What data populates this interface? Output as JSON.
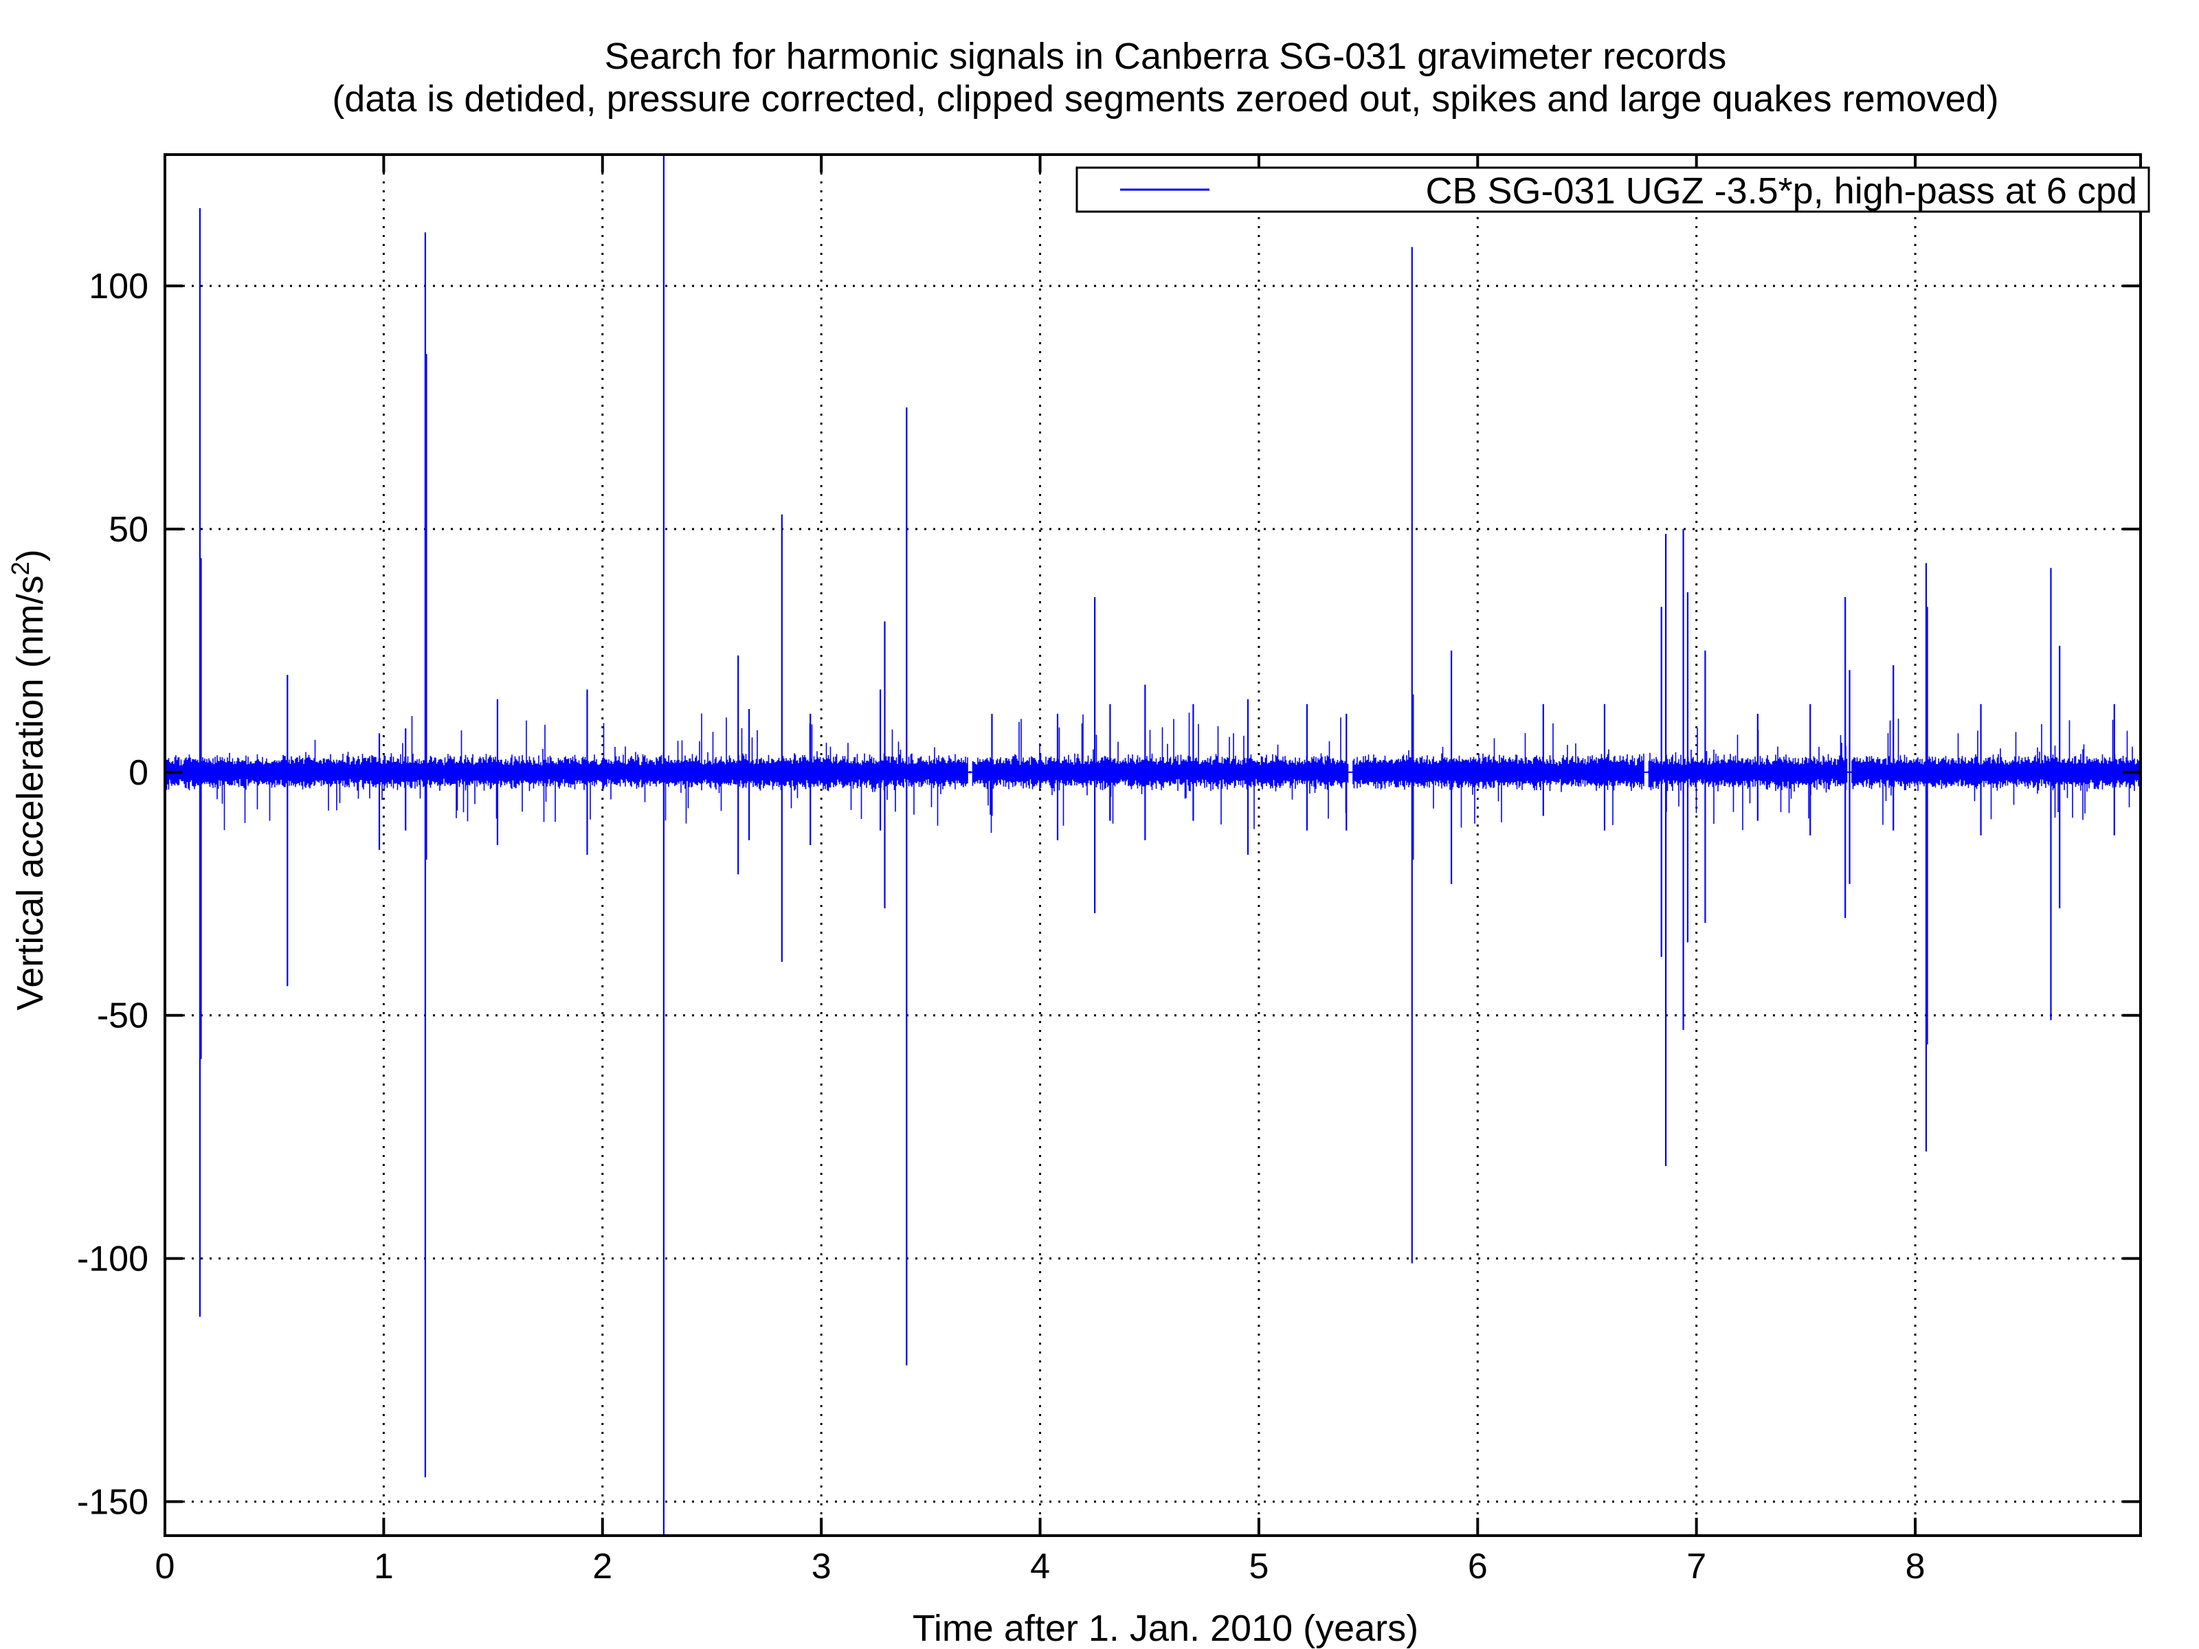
{
  "chart_data": {
    "type": "line",
    "title": "Search for harmonic signals in Canberra SG-031 gravimeter records",
    "subtitle": "(data is detided, pressure corrected, clipped segments zeroed out, spikes and large quakes removed)",
    "xlabel": "Time after 1. Jan. 2010 (years)",
    "ylabel": {
      "base": "Vertical acceleration (nm/s",
      "superscript": "2",
      "suffix": ")"
    },
    "xlim": [
      0,
      9.03
    ],
    "ylim": [
      -157,
      127
    ],
    "x_ticks": [
      0,
      1,
      2,
      3,
      4,
      5,
      6,
      7,
      8
    ],
    "y_ticks": [
      -150,
      -100,
      -50,
      0,
      50,
      100
    ],
    "grid": true,
    "legend_position": "top-right",
    "series": [
      {
        "name": "CB SG-031 UGZ -3.5*p, high-pass at 6 cpd",
        "color": "#0000ff",
        "noise_band": {
          "typical_amplitude": 4,
          "burst_amplitude": 9
        },
        "zero_gaps": [
          3.68,
          5.42,
          6.77,
          7.7
        ],
        "spikes": [
          {
            "x": 0.16,
            "max": 116,
            "min": -112
          },
          {
            "x": 0.165,
            "max": 44,
            "min": -59
          },
          {
            "x": 0.56,
            "max": 20,
            "min": -44
          },
          {
            "x": 0.98,
            "max": 8,
            "min": -16
          },
          {
            "x": 1.1,
            "max": 9,
            "min": -12
          },
          {
            "x": 1.19,
            "max": 111,
            "min": -145
          },
          {
            "x": 1.195,
            "max": 86,
            "min": -18
          },
          {
            "x": 1.52,
            "max": 15,
            "min": -15
          },
          {
            "x": 1.93,
            "max": 17,
            "min": -17
          },
          {
            "x": 2.28,
            "max": 127,
            "min": -157
          },
          {
            "x": 2.62,
            "max": 24,
            "min": -21
          },
          {
            "x": 2.67,
            "max": 13,
            "min": -14
          },
          {
            "x": 2.82,
            "max": 53,
            "min": -39
          },
          {
            "x": 2.95,
            "max": 12,
            "min": -15
          },
          {
            "x": 3.27,
            "max": 17,
            "min": -12
          },
          {
            "x": 3.29,
            "max": 31,
            "min": -28
          },
          {
            "x": 3.39,
            "max": 75,
            "min": -122
          },
          {
            "x": 3.78,
            "max": 12,
            "min": -9
          },
          {
            "x": 4.08,
            "max": 12,
            "min": -14
          },
          {
            "x": 4.25,
            "max": 36,
            "min": -29
          },
          {
            "x": 4.32,
            "max": 14,
            "min": -10
          },
          {
            "x": 4.48,
            "max": 18,
            "min": -14
          },
          {
            "x": 4.7,
            "max": 14,
            "min": -10
          },
          {
            "x": 4.95,
            "max": 15,
            "min": -17
          },
          {
            "x": 5.22,
            "max": 14,
            "min": -12
          },
          {
            "x": 5.4,
            "max": 12,
            "min": -12
          },
          {
            "x": 5.7,
            "max": 108,
            "min": -101
          },
          {
            "x": 5.705,
            "max": 16,
            "min": -18
          },
          {
            "x": 5.88,
            "max": 25,
            "min": -23
          },
          {
            "x": 6.3,
            "max": 14,
            "min": -9
          },
          {
            "x": 6.58,
            "max": 14,
            "min": -12
          },
          {
            "x": 6.84,
            "max": 34,
            "min": -38
          },
          {
            "x": 6.86,
            "max": 49,
            "min": -81
          },
          {
            "x": 6.94,
            "max": 50,
            "min": -53
          },
          {
            "x": 6.96,
            "max": 37,
            "min": -35
          },
          {
            "x": 7.04,
            "max": 25,
            "min": -31
          },
          {
            "x": 7.28,
            "max": 12,
            "min": -10
          },
          {
            "x": 7.52,
            "max": 14,
            "min": -13
          },
          {
            "x": 7.68,
            "max": 36,
            "min": -30
          },
          {
            "x": 7.7,
            "max": 21,
            "min": -23
          },
          {
            "x": 7.9,
            "max": 22,
            "min": -12
          },
          {
            "x": 8.05,
            "max": 43,
            "min": -78
          },
          {
            "x": 8.055,
            "max": 34,
            "min": -56
          },
          {
            "x": 8.3,
            "max": 14,
            "min": -13
          },
          {
            "x": 8.62,
            "max": 42,
            "min": -51
          },
          {
            "x": 8.66,
            "max": 26,
            "min": -28
          },
          {
            "x": 8.91,
            "max": 14,
            "min": -13
          }
        ]
      }
    ]
  }
}
